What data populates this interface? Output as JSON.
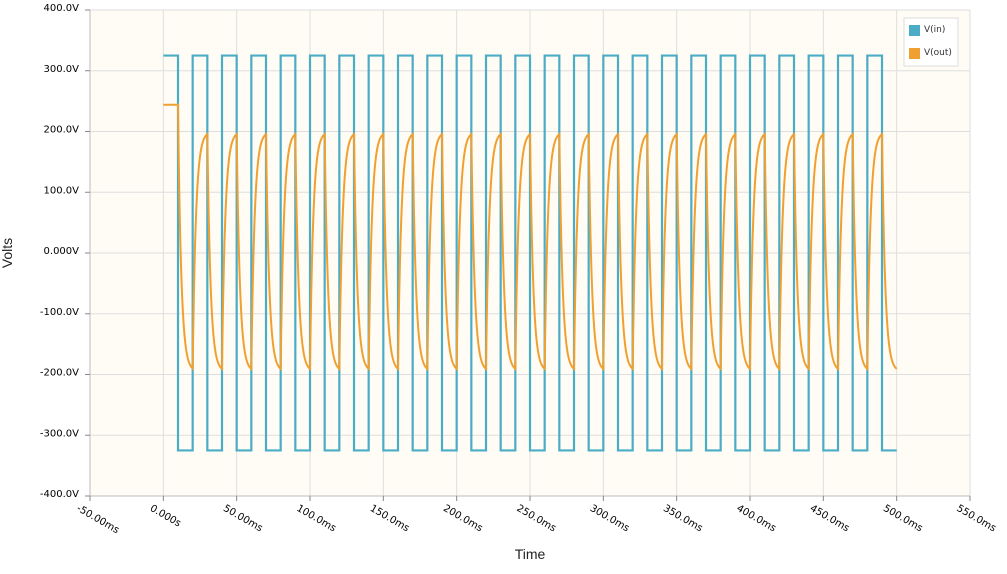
{
  "chart_data": {
    "type": "line",
    "title": "",
    "xlabel": "Time",
    "ylabel": "Volts",
    "xlim": [
      -50,
      550
    ],
    "ylim": [
      -400,
      400
    ],
    "x_unit": "ms",
    "grid": true,
    "legend_position": "top-right",
    "y_ticks": [
      {
        "value": 400,
        "label": "400.0V"
      },
      {
        "value": 300,
        "label": "300.0V"
      },
      {
        "value": 200,
        "label": "200.0V"
      },
      {
        "value": 100,
        "label": "100.0V"
      },
      {
        "value": 0,
        "label": "0.000V"
      },
      {
        "value": -100,
        "label": "-100.0V"
      },
      {
        "value": -200,
        "label": "-200.0V"
      },
      {
        "value": -300,
        "label": "-300.0V"
      },
      {
        "value": -400,
        "label": "-400.0V"
      }
    ],
    "x_ticks": [
      {
        "value": -50,
        "label": "-50.00ms"
      },
      {
        "value": 0,
        "label": "0.000s"
      },
      {
        "value": 50,
        "label": "50.00ms"
      },
      {
        "value": 100,
        "label": "100.0ms"
      },
      {
        "value": 150,
        "label": "150.0ms"
      },
      {
        "value": 200,
        "label": "200.0ms"
      },
      {
        "value": 250,
        "label": "250.0ms"
      },
      {
        "value": 300,
        "label": "300.0ms"
      },
      {
        "value": 350,
        "label": "350.0ms"
      },
      {
        "value": 400,
        "label": "400.0ms"
      },
      {
        "value": 450,
        "label": "450.0ms"
      },
      {
        "value": 500,
        "label": "500.0ms"
      },
      {
        "value": 550,
        "label": "550.0ms"
      }
    ],
    "series": [
      {
        "name": "V(in)",
        "color": "#4bacc6",
        "waveform": "square",
        "start_ms": 0,
        "end_ms": 500,
        "period_ms": 20,
        "initial_high_ms": 10,
        "high": 325,
        "low": -325
      },
      {
        "name": "V(out)",
        "color": "#f0a030",
        "waveform": "rc-response",
        "start_ms": 0,
        "end_ms": 500,
        "initial_value": 244,
        "peak": 200,
        "trough": -195,
        "settle_ms": 10
      }
    ]
  }
}
